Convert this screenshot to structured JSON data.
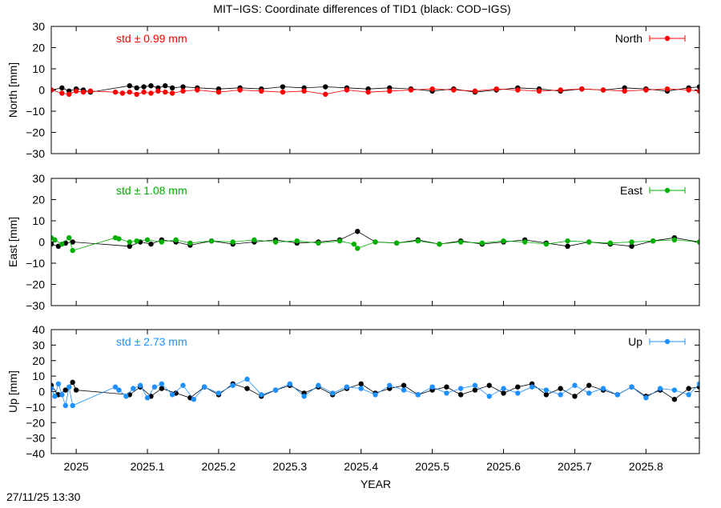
{
  "title": "MIT−IGS: Coordinate differences of TID1 (black: COD−IGS)",
  "timestamp": "27/11/25 13:30",
  "chart_data": [
    {
      "type": "scatter",
      "ylabel": "North [mm]",
      "ylim": [
        -30,
        30
      ],
      "yticks": [
        30,
        20,
        10,
        0,
        -10,
        -20,
        -30
      ],
      "ytick_labels": [
        "30",
        "20",
        "10",
        "0",
        "−10",
        "−20",
        "−30"
      ],
      "xlim": [
        2024.965,
        2025.875
      ],
      "std_label": "std ± 0.99 mm",
      "legend": "North",
      "legend_position": "top-right",
      "color": "#ff0000",
      "reference_color": "#000000",
      "series": [
        {
          "name": "North",
          "role": "MIT-IGS",
          "color": "#ff0000",
          "std": 0.99,
          "x": [
            2024.965,
            2024.98,
            2024.99,
            2025.0,
            2025.01,
            2025.02,
            2025.055,
            2025.065,
            2025.075,
            2025.085,
            2025.095,
            2025.105,
            2025.115,
            2025.125,
            2025.135,
            2025.15,
            2025.17,
            2025.2,
            2025.23,
            2025.26,
            2025.29,
            2025.32,
            2025.35,
            2025.38,
            2025.41,
            2025.44,
            2025.47,
            2025.5,
            2025.53,
            2025.56,
            2025.59,
            2025.62,
            2025.65,
            2025.68,
            2025.71,
            2025.74,
            2025.77,
            2025.8,
            2025.83,
            2025.86,
            2025.875
          ],
          "y": [
            0,
            -1.5,
            -2,
            -0.5,
            -1,
            -0.5,
            -1,
            -1.5,
            -1,
            -2,
            -1,
            -1.5,
            -0.5,
            -1,
            -1.5,
            -0.5,
            0,
            -1,
            0,
            -0.5,
            -1,
            -0.5,
            -2,
            0,
            -1,
            -0.5,
            0,
            0.5,
            0,
            -0.5,
            0.5,
            0,
            -0.5,
            0,
            0.5,
            0,
            -0.5,
            0,
            0.5,
            0,
            -0.5
          ]
        },
        {
          "name": "COD-IGS",
          "role": "reference",
          "color": "#000000",
          "x": [
            2024.965,
            2024.98,
            2024.99,
            2025.0,
            2025.01,
            2025.02,
            2025.075,
            2025.085,
            2025.095,
            2025.105,
            2025.115,
            2025.125,
            2025.135,
            2025.15,
            2025.17,
            2025.2,
            2025.23,
            2025.26,
            2025.29,
            2025.32,
            2025.35,
            2025.38,
            2025.41,
            2025.44,
            2025.47,
            2025.5,
            2025.53,
            2025.56,
            2025.59,
            2025.62,
            2025.65,
            2025.68,
            2025.71,
            2025.74,
            2025.77,
            2025.8,
            2025.83,
            2025.86,
            2025.875
          ],
          "y": [
            0,
            1,
            -0.5,
            0.5,
            0,
            -1,
            2,
            1,
            1.5,
            2,
            1,
            2,
            1,
            1.5,
            1,
            0.5,
            1,
            0.5,
            1.5,
            1,
            1.5,
            1,
            0.5,
            1,
            0.5,
            -0.5,
            0.5,
            -1,
            0,
            1,
            0.5,
            -0.5,
            0.5,
            0,
            1,
            0.5,
            -0.5,
            1,
            1.5
          ]
        }
      ]
    },
    {
      "type": "scatter",
      "ylabel": "East [mm]",
      "ylim": [
        -30,
        30
      ],
      "yticks": [
        30,
        20,
        10,
        0,
        -10,
        -20,
        -30
      ],
      "ytick_labels": [
        "30",
        "20",
        "10",
        "0",
        "−10",
        "−20",
        "−30"
      ],
      "xlim": [
        2024.965,
        2025.875
      ],
      "std_label": "std ± 1.08 mm",
      "legend": "East",
      "legend_position": "top-right",
      "color": "#00b000",
      "reference_color": "#000000",
      "series": [
        {
          "name": "East",
          "role": "MIT-IGS",
          "color": "#00b000",
          "std": 1.08,
          "x": [
            2024.965,
            2024.97,
            2024.98,
            2024.99,
            2024.995,
            2025.055,
            2025.06,
            2025.075,
            2025.085,
            2025.1,
            2025.12,
            2025.14,
            2025.16,
            2025.19,
            2025.22,
            2025.25,
            2025.28,
            2025.31,
            2025.34,
            2025.37,
            2025.39,
            2025.395,
            2025.42,
            2025.45,
            2025.48,
            2025.51,
            2025.54,
            2025.57,
            2025.6,
            2025.63,
            2025.66,
            2025.69,
            2025.72,
            2025.75,
            2025.78,
            2025.81,
            2025.84,
            2025.875
          ],
          "y": [
            2,
            1,
            -1,
            2,
            -4,
            2,
            1.5,
            0,
            0.5,
            1,
            0,
            1,
            -0.5,
            0.5,
            0,
            1,
            0,
            0.5,
            -0.5,
            0.5,
            -1,
            -3,
            0,
            -0.5,
            0.5,
            -1,
            0,
            -0.5,
            0.5,
            0,
            -1,
            0.5,
            0,
            -0.5,
            0,
            0.5,
            1,
            0
          ]
        },
        {
          "name": "COD-IGS",
          "role": "reference",
          "color": "#000000",
          "x": [
            2024.965,
            2024.975,
            2024.985,
            2024.995,
            2025.075,
            2025.09,
            2025.105,
            2025.12,
            2025.14,
            2025.16,
            2025.19,
            2025.22,
            2025.25,
            2025.28,
            2025.31,
            2025.34,
            2025.37,
            2025.395,
            2025.42,
            2025.45,
            2025.48,
            2025.51,
            2025.54,
            2025.57,
            2025.6,
            2025.63,
            2025.66,
            2025.69,
            2025.72,
            2025.75,
            2025.78,
            2025.81,
            2025.84,
            2025.875
          ],
          "y": [
            -1,
            -2,
            -0.5,
            0,
            -2,
            0,
            -1,
            1,
            0,
            -1.5,
            0.5,
            -1,
            0,
            1,
            -0.5,
            0,
            1,
            5,
            0,
            -0.5,
            1,
            -1,
            0.5,
            -1,
            0,
            1,
            -0.5,
            -2,
            0,
            -1,
            -2,
            0.5,
            2,
            0
          ]
        }
      ]
    },
    {
      "type": "scatter",
      "ylabel": "Up [mm]",
      "ylim": [
        -40,
        40
      ],
      "yticks": [
        40,
        30,
        20,
        10,
        0,
        -10,
        -20,
        -30,
        -40
      ],
      "ytick_labels": [
        "40",
        "30",
        "20",
        "10",
        "0",
        "−10",
        "−20",
        "−30",
        "−40"
      ],
      "xlim": [
        2024.965,
        2025.875
      ],
      "xticks": [
        2025.0,
        2025.1,
        2025.2,
        2025.3,
        2025.4,
        2025.5,
        2025.6,
        2025.7,
        2025.8
      ],
      "xtick_labels": [
        "2025",
        "2025.1",
        "2025.2",
        "2025.3",
        "2025.4",
        "2025.5",
        "2025.6",
        "2025.7",
        "2025.8"
      ],
      "xlabel": "YEAR",
      "std_label": "std ± 2.73 mm",
      "legend": "Up",
      "legend_position": "top-right",
      "color": "#1e90ff",
      "reference_color": "#000000",
      "series": [
        {
          "name": "Up",
          "role": "MIT-IGS",
          "color": "#1e90ff",
          "std": 2.73,
          "x": [
            2024.965,
            2024.97,
            2024.975,
            2024.98,
            2024.985,
            2024.99,
            2024.995,
            2025.055,
            2025.06,
            2025.07,
            2025.08,
            2025.09,
            2025.1,
            2025.11,
            2025.12,
            2025.135,
            2025.15,
            2025.165,
            2025.18,
            2025.2,
            2025.22,
            2025.24,
            2025.26,
            2025.28,
            2025.3,
            2025.32,
            2025.34,
            2025.36,
            2025.38,
            2025.4,
            2025.42,
            2025.44,
            2025.46,
            2025.48,
            2025.5,
            2025.52,
            2025.54,
            2025.56,
            2025.58,
            2025.6,
            2025.62,
            2025.64,
            2025.66,
            2025.68,
            2025.7,
            2025.72,
            2025.74,
            2025.76,
            2025.78,
            2025.8,
            2025.82,
            2025.84,
            2025.86,
            2025.875
          ],
          "y": [
            2,
            -3,
            5,
            -2,
            -9,
            3,
            -9,
            3,
            1,
            -3,
            2,
            4,
            -4,
            3,
            5,
            -2,
            4,
            -5,
            3,
            -1,
            4,
            8,
            -2,
            1,
            5,
            -3,
            4,
            -1,
            3,
            2,
            -2,
            4,
            1,
            -2,
            3,
            -1,
            2,
            4,
            -3,
            2,
            -1,
            3,
            1,
            -2,
            4,
            -1,
            2,
            -2,
            3,
            -4,
            2,
            1,
            -2,
            5
          ]
        },
        {
          "name": "COD-IGS",
          "role": "reference",
          "color": "#000000",
          "x": [
            2024.965,
            2024.975,
            2024.985,
            2024.995,
            2025.0,
            2025.075,
            2025.09,
            2025.105,
            2025.12,
            2025.14,
            2025.16,
            2025.18,
            2025.2,
            2025.22,
            2025.24,
            2025.26,
            2025.28,
            2025.3,
            2025.32,
            2025.34,
            2025.36,
            2025.38,
            2025.4,
            2025.42,
            2025.44,
            2025.46,
            2025.48,
            2025.5,
            2025.52,
            2025.54,
            2025.56,
            2025.58,
            2025.6,
            2025.62,
            2025.64,
            2025.66,
            2025.68,
            2025.7,
            2025.72,
            2025.74,
            2025.76,
            2025.78,
            2025.8,
            2025.82,
            2025.84,
            2025.86,
            2025.875
          ],
          "y": [
            4,
            -2,
            1,
            6,
            1,
            -2,
            3,
            -3,
            2,
            -1,
            -4,
            3,
            -2,
            5,
            2,
            -3,
            1,
            4,
            -1,
            3,
            -2,
            2,
            5,
            -1,
            2,
            4,
            -2,
            1,
            3,
            -2,
            1,
            4,
            -1,
            3,
            5,
            -2,
            2,
            -3,
            4,
            1,
            -2,
            3,
            -3,
            1,
            -5,
            2,
            3
          ]
        }
      ]
    }
  ]
}
